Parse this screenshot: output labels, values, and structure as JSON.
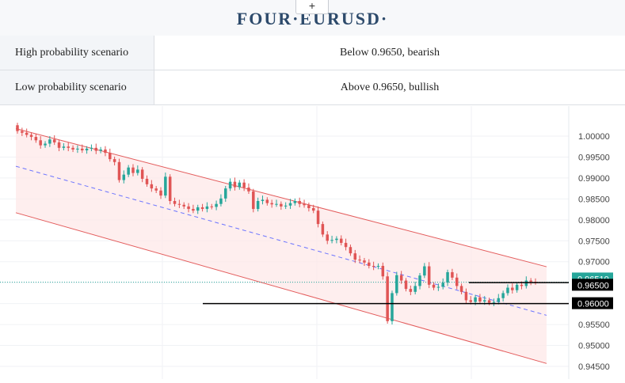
{
  "header": {
    "title": "FOUR·EURUSD·",
    "plus_label": "+"
  },
  "scenarios": [
    {
      "label": "High probability scenario",
      "value": "Below 0.9650, bearish"
    },
    {
      "label": "Low probability scenario",
      "value": "Above 0.9650, bullish"
    }
  ],
  "chart_data": {
    "type": "candlestick",
    "ylim": [
      0.944,
      1.004
    ],
    "y_ticks": [
      "1.00000",
      "0.99500",
      "0.99000",
      "0.98500",
      "0.98000",
      "0.97500",
      "0.97000",
      "0.96500",
      "0.96000",
      "0.95500",
      "0.95000",
      "0.94500"
    ],
    "tick_values": [
      1.0,
      0.995,
      0.99,
      0.985,
      0.98,
      0.975,
      0.97,
      0.965,
      0.96,
      0.955,
      0.95,
      0.945
    ],
    "current_price": {
      "label": "0.96510",
      "value": 0.9651,
      "color": "#26a69a"
    },
    "levels": [
      {
        "label": "0.96500",
        "value": 0.965
      },
      {
        "label": "0.96000",
        "value": 0.96
      }
    ],
    "channel": {
      "upper_start": 1.0018,
      "upper_end": 0.9688,
      "lower_start": 0.9817,
      "lower_end": 0.9457,
      "mid_start": 0.9928,
      "mid_end": 0.9572
    },
    "colors": {
      "up": "#26a69a",
      "down": "#e05555",
      "channel": "#e35b5b",
      "channel_fill": "#fde8e8",
      "mid": "#6b74ff"
    },
    "closes": [
      1.0012,
      1.0008,
      1.0003,
      0.9998,
      0.999,
      0.9978,
      0.9982,
      0.9992,
      0.9985,
      0.9972,
      0.9975,
      0.9972,
      0.9968,
      0.997,
      0.9966,
      0.997,
      0.9972,
      0.9965,
      0.9968,
      0.996,
      0.9945,
      0.9938,
      0.9895,
      0.9908,
      0.9925,
      0.9912,
      0.992,
      0.9898,
      0.9885,
      0.9875,
      0.987,
      0.9858,
      0.9903,
      0.9845,
      0.9838,
      0.9836,
      0.9832,
      0.9826,
      0.9822,
      0.983,
      0.9826,
      0.9832,
      0.9831,
      0.9838,
      0.9851,
      0.9875,
      0.9891,
      0.9878,
      0.9889,
      0.9877,
      0.9868,
      0.9826,
      0.9845,
      0.9848,
      0.984,
      0.9837,
      0.9838,
      0.9832,
      0.9834,
      0.984,
      0.9845,
      0.9838,
      0.9835,
      0.9828,
      0.9822,
      0.979,
      0.9765,
      0.975,
      0.9752,
      0.9755,
      0.9745,
      0.9735,
      0.972,
      0.9705,
      0.9703,
      0.9698,
      0.969,
      0.9688,
      0.969,
      0.9665,
      0.9558,
      0.9625,
      0.9668,
      0.9655,
      0.9635,
      0.9628,
      0.9642,
      0.9667,
      0.9689,
      0.9645,
      0.9638,
      0.964,
      0.965,
      0.9675,
      0.9662,
      0.9642,
      0.9628,
      0.9608,
      0.9604,
      0.9615,
      0.9605,
      0.9608,
      0.9602,
      0.9604,
      0.9613,
      0.9625,
      0.9638,
      0.9632,
      0.9645,
      0.9642,
      0.9655,
      0.9652,
      0.9651
    ]
  }
}
